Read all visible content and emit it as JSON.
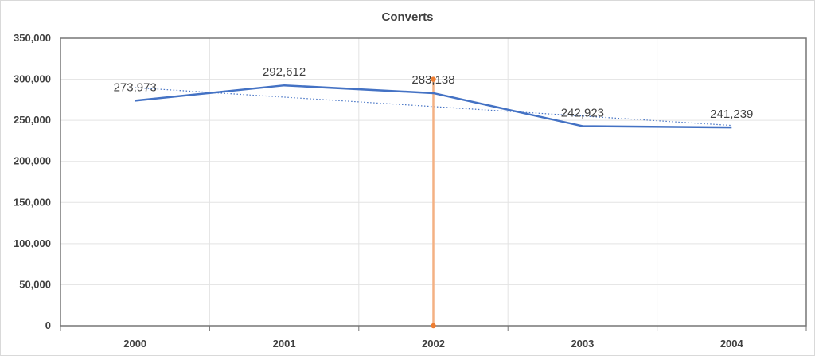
{
  "chart_data": {
    "type": "line",
    "title": "Converts",
    "xlabel": "",
    "ylabel": "",
    "categories": [
      "2000",
      "2001",
      "2002",
      "2003",
      "2004"
    ],
    "series": [
      {
        "values": [
          273973,
          292612,
          283138,
          242923,
          241239
        ],
        "color": "#4472c4",
        "style": "solid"
      }
    ],
    "data_labels": [
      "273,973",
      "292,612",
      "283,138",
      "242,923",
      "241,239"
    ],
    "trendline": {
      "type": "linear",
      "color": "#4472c4",
      "style": "dotted"
    },
    "marker_line": {
      "category": "2002",
      "from": 0,
      "to": 300000,
      "color": "#f4b183",
      "point_color": "#ed7d31"
    },
    "ylim": [
      0,
      350000
    ],
    "yticks": [
      0,
      50000,
      100000,
      150000,
      200000,
      250000,
      300000,
      350000
    ],
    "ytick_labels": [
      "0",
      "50,000",
      "100,000",
      "150,000",
      "200,000",
      "250,000",
      "300,000",
      "350,000"
    ],
    "grid": true,
    "legend": "none"
  }
}
